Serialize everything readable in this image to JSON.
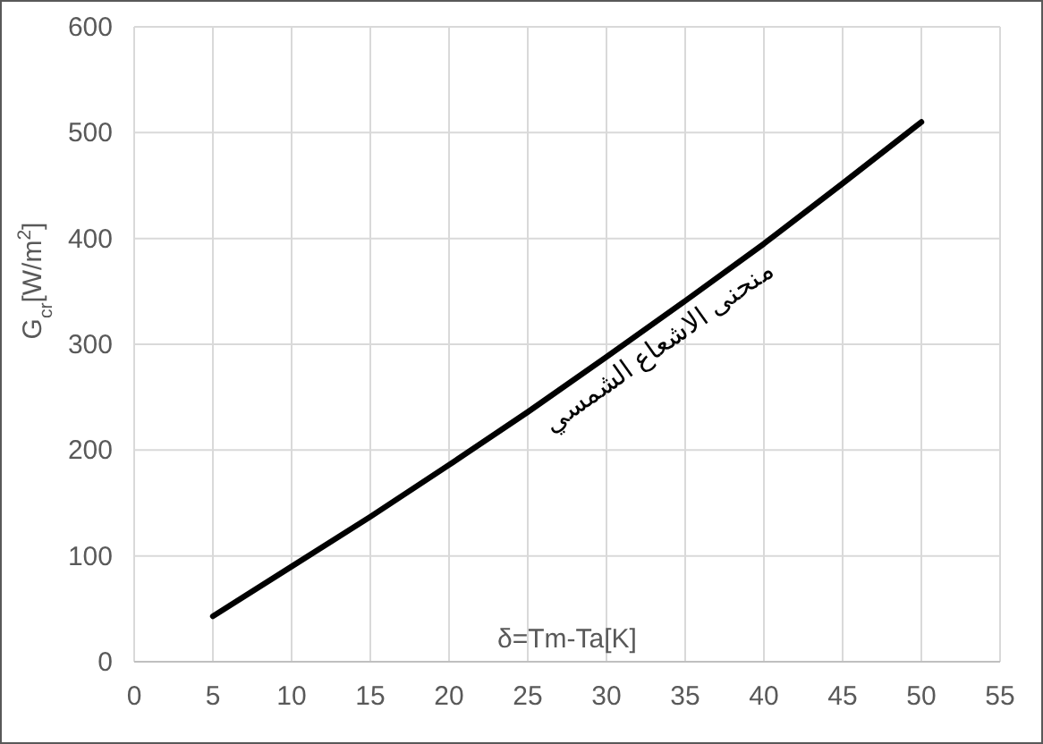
{
  "chart_data": {
    "type": "line",
    "xlabel": "δ=Tm-Ta[K]",
    "ylabel": "G$_{cr}$[W/m$^{2}$]",
    "x": [
      5,
      10,
      15,
      20,
      25,
      30,
      35,
      40,
      45,
      50
    ],
    "series": [
      {
        "name": "منحنى الاشعاع الشمسي",
        "color": "#000000",
        "values": [
          43,
          90,
          137,
          186,
          236,
          288,
          341,
          395,
          452,
          510
        ]
      }
    ],
    "xlim": [
      0,
      55
    ],
    "xticks": [
      0,
      5,
      10,
      15,
      20,
      25,
      30,
      35,
      40,
      45,
      50,
      55
    ],
    "ylim": [
      0,
      600
    ],
    "yticks": [
      0,
      100,
      200,
      300,
      400,
      500,
      600
    ],
    "grid": true,
    "legend": false,
    "marker": "none",
    "line_style": "solid"
  }
}
